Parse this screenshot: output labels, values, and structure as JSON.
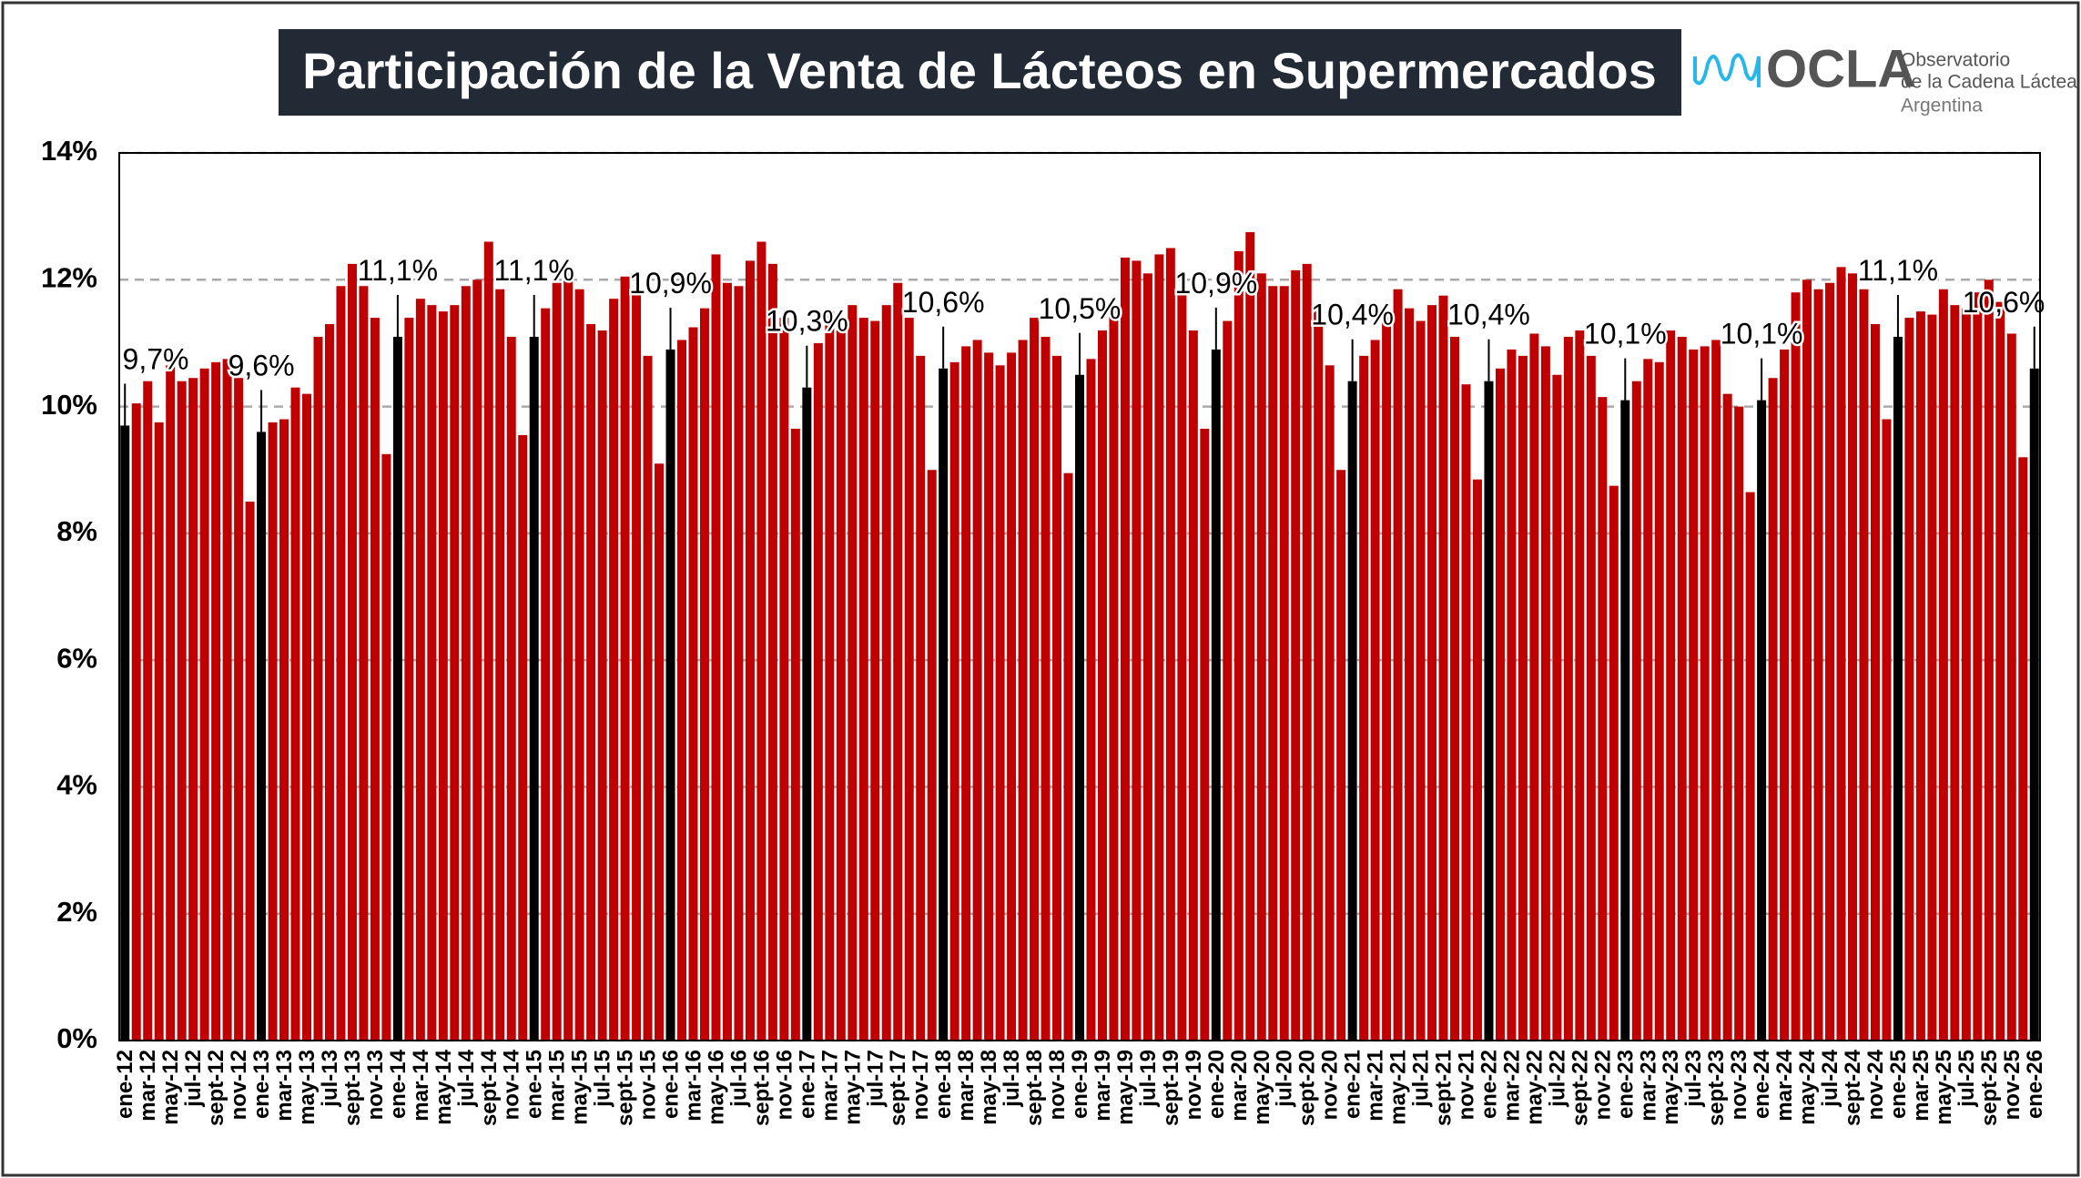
{
  "logo": {
    "name": "OCLA",
    "lines": [
      "Observatorio",
      "de la Cadena Láctea",
      "Argentina"
    ]
  },
  "chart_data": {
    "type": "bar",
    "title": "Participación  de la Venta de Lácteos en Supermercados",
    "categories": [
      "ene-12",
      null,
      "mar-12",
      null,
      "may-12",
      null,
      "jul-12",
      null,
      "sept-12",
      null,
      "nov-12",
      null,
      "ene-13",
      null,
      "mar-13",
      null,
      "may-13",
      null,
      "jul-13",
      null,
      "sept-13",
      null,
      "nov-13",
      null,
      "ene-14",
      null,
      "mar-14",
      null,
      "may-14",
      null,
      "jul-14",
      null,
      "sept-14",
      null,
      "nov-14",
      null,
      "ene-15",
      null,
      "mar-15",
      null,
      "may-15",
      null,
      "jul-15",
      null,
      "sept-15",
      null,
      "nov-15",
      null,
      "ene-16",
      null,
      "mar-16",
      null,
      "may-16",
      null,
      "jul-16",
      null,
      "sept-16",
      null,
      "nov-16",
      null,
      "ene-17",
      null,
      "mar-17",
      null,
      "may-17",
      null,
      "jul-17",
      null,
      "sept-17",
      null,
      "nov-17",
      null,
      "ene-18",
      null,
      "mar-18",
      null,
      "may-18",
      null,
      "jul-18",
      null,
      "sept-18",
      null,
      "nov-18",
      null,
      "ene-19",
      null,
      "mar-19",
      null,
      "may-19",
      null,
      "jul-19",
      null,
      "sept-19",
      null,
      "nov-19",
      null,
      "ene-20",
      null,
      "mar-20",
      null,
      "may-20",
      null,
      "jul-20",
      null,
      "sept-20",
      null,
      "nov-20",
      null,
      "ene-21",
      null,
      "mar-21",
      null,
      "may-21",
      null,
      "jul-21",
      null,
      "sept-21",
      null,
      "nov-21",
      null,
      "ene-22",
      null,
      "mar-22",
      null,
      "may-22",
      null,
      "jul-22",
      null,
      "sept-22",
      null,
      "nov-22",
      null,
      "ene-23",
      null,
      "mar-23",
      null,
      "may-23",
      null,
      "jul-23",
      null,
      "sept-23",
      null,
      "nov-23",
      null,
      "ene-24",
      null,
      "mar-24",
      null,
      "may-24",
      null,
      "jul-24",
      null,
      "sept-24",
      null,
      "nov-24",
      null,
      "ene-25",
      null,
      "mar-25",
      null,
      "may-25",
      null,
      "jul-25",
      null,
      "sept-25",
      null,
      "nov-25",
      null,
      "ene-26"
    ],
    "values": [
      9.7,
      10.05,
      10.4,
      9.75,
      10.65,
      10.4,
      10.45,
      10.6,
      10.7,
      10.75,
      10.45,
      8.5,
      9.6,
      9.75,
      9.8,
      10.3,
      10.2,
      11.1,
      11.3,
      11.9,
      12.25,
      11.9,
      11.4,
      9.25,
      11.1,
      11.4,
      11.7,
      11.6,
      11.5,
      11.6,
      11.9,
      12.0,
      12.6,
      11.85,
      11.1,
      9.55,
      11.1,
      11.55,
      11.95,
      12.1,
      11.85,
      11.3,
      11.2,
      11.7,
      12.05,
      11.8,
      10.8,
      9.1,
      10.9,
      11.05,
      11.25,
      11.55,
      12.4,
      11.95,
      11.9,
      12.3,
      12.6,
      12.25,
      11.4,
      9.65,
      10.3,
      11.0,
      11.5,
      11.2,
      11.6,
      11.4,
      11.35,
      11.6,
      11.95,
      11.4,
      10.8,
      9.0,
      10.6,
      10.7,
      10.95,
      11.05,
      10.85,
      10.65,
      10.85,
      11.05,
      11.4,
      11.1,
      10.8,
      8.95,
      10.5,
      10.75,
      11.2,
      11.55,
      12.35,
      12.3,
      12.1,
      12.4,
      12.5,
      11.85,
      11.2,
      9.65,
      10.9,
      11.35,
      12.45,
      12.75,
      12.1,
      11.9,
      11.9,
      12.15,
      12.25,
      11.5,
      10.65,
      9.0,
      10.4,
      10.8,
      11.05,
      11.5,
      11.85,
      11.55,
      11.35,
      11.6,
      11.75,
      11.1,
      10.35,
      8.85,
      10.4,
      10.6,
      10.9,
      10.8,
      11.15,
      10.95,
      10.5,
      11.1,
      11.2,
      10.8,
      10.15,
      8.75,
      10.1,
      10.4,
      10.75,
      10.7,
      11.2,
      11.1,
      10.9,
      10.95,
      11.05,
      10.2,
      10.0,
      8.65,
      10.1,
      10.45,
      10.9,
      11.8,
      12.0,
      11.85,
      11.95,
      12.2,
      12.1,
      11.85,
      11.3,
      9.8,
      11.1,
      11.4,
      11.5,
      11.45,
      11.85,
      11.6,
      11.55,
      11.8,
      12.0,
      11.65,
      11.15,
      9.2,
      10.6
    ],
    "value_labels": [
      "9,7%",
      null,
      null,
      null,
      null,
      null,
      null,
      null,
      null,
      null,
      null,
      null,
      "9,6%",
      null,
      null,
      null,
      null,
      null,
      null,
      null,
      null,
      null,
      null,
      null,
      "11,1%",
      null,
      null,
      null,
      null,
      null,
      null,
      null,
      null,
      null,
      null,
      null,
      "11,1%",
      null,
      null,
      null,
      null,
      null,
      null,
      null,
      null,
      null,
      null,
      null,
      "10,9%",
      null,
      null,
      null,
      null,
      null,
      null,
      null,
      null,
      null,
      null,
      null,
      "10,3%",
      null,
      null,
      null,
      null,
      null,
      null,
      null,
      null,
      null,
      null,
      null,
      "10,6%",
      null,
      null,
      null,
      null,
      null,
      null,
      null,
      null,
      null,
      null,
      null,
      "10,5%",
      null,
      null,
      null,
      null,
      null,
      null,
      null,
      null,
      null,
      null,
      null,
      "10,9%",
      null,
      null,
      null,
      null,
      null,
      null,
      null,
      null,
      null,
      null,
      null,
      "10,4%",
      null,
      null,
      null,
      null,
      null,
      null,
      null,
      null,
      null,
      null,
      null,
      "10,4%",
      null,
      null,
      null,
      null,
      null,
      null,
      null,
      null,
      null,
      null,
      null,
      "10,1%",
      null,
      null,
      null,
      null,
      null,
      null,
      null,
      null,
      null,
      null,
      null,
      "10,1%",
      null,
      null,
      null,
      null,
      null,
      null,
      null,
      null,
      null,
      null,
      null,
      "11,1%",
      null,
      null,
      null,
      null,
      null,
      null,
      null,
      null,
      null,
      null,
      null,
      "10,6%"
    ],
    "color": "#c00000",
    "labelled_color": "#000000",
    "ylim": [
      0,
      14
    ],
    "yticks": [
      {
        "value": 0,
        "label": "0%"
      },
      {
        "value": 2,
        "label": "2%"
      },
      {
        "value": 4,
        "label": "4%"
      },
      {
        "value": 6,
        "label": "6%"
      },
      {
        "value": 8,
        "label": "8%"
      },
      {
        "value": 10,
        "label": "10%"
      },
      {
        "value": 12,
        "label": "12%"
      },
      {
        "value": 14,
        "label": "14%"
      }
    ],
    "grid": true
  }
}
